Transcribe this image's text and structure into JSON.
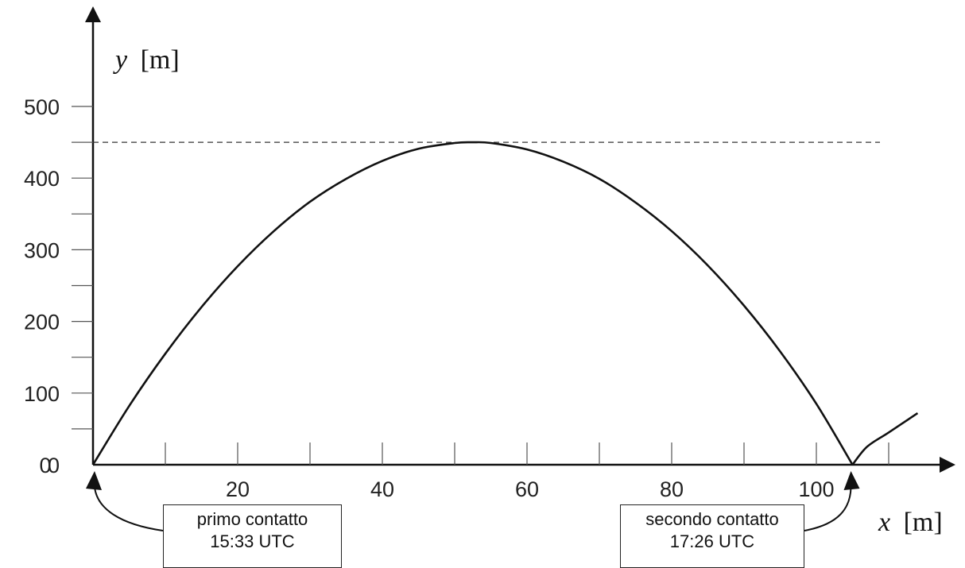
{
  "chart_data": {
    "type": "line",
    "xlabel_var": "x",
    "xlabel_unit": "[m]",
    "ylabel_var": "y",
    "ylabel_unit": "[m]",
    "xlim": [
      0,
      118
    ],
    "ylim": [
      0,
      560
    ],
    "x_ticks": [
      20,
      40,
      60,
      80,
      100
    ],
    "x_minor_ticks": [
      10,
      20,
      30,
      40,
      50,
      60,
      70,
      80,
      90,
      100,
      110
    ],
    "y_ticks": [
      0,
      100,
      200,
      300,
      400,
      500
    ],
    "y_minor_ticks": [
      50,
      100,
      150,
      200,
      250,
      300,
      350,
      400,
      450,
      500
    ],
    "grid": false,
    "series": [
      {
        "x": [
          0,
          5,
          10,
          15,
          20,
          25,
          30,
          35,
          40,
          45,
          50,
          52.5,
          55,
          60,
          65,
          70,
          75,
          80,
          85,
          90,
          95,
          100,
          105
        ],
        "y": [
          0,
          82,
          155,
          220,
          277,
          326,
          367,
          399,
          424,
          441,
          449,
          450,
          449,
          440,
          423,
          399,
          366,
          326,
          278,
          222,
          158,
          85,
          0
        ]
      },
      {
        "x": [
          105,
          107,
          110,
          114
        ],
        "y": [
          0,
          25,
          45,
          72
        ]
      }
    ],
    "reference_line": {
      "y": 450,
      "style": "dashed"
    },
    "annotations": [
      {
        "x": 0,
        "line1": "primo contatto",
        "line2": "15:33 UTC"
      },
      {
        "x": 105,
        "line1": "secondo contatto",
        "line2": "17:26 UTC"
      }
    ]
  }
}
